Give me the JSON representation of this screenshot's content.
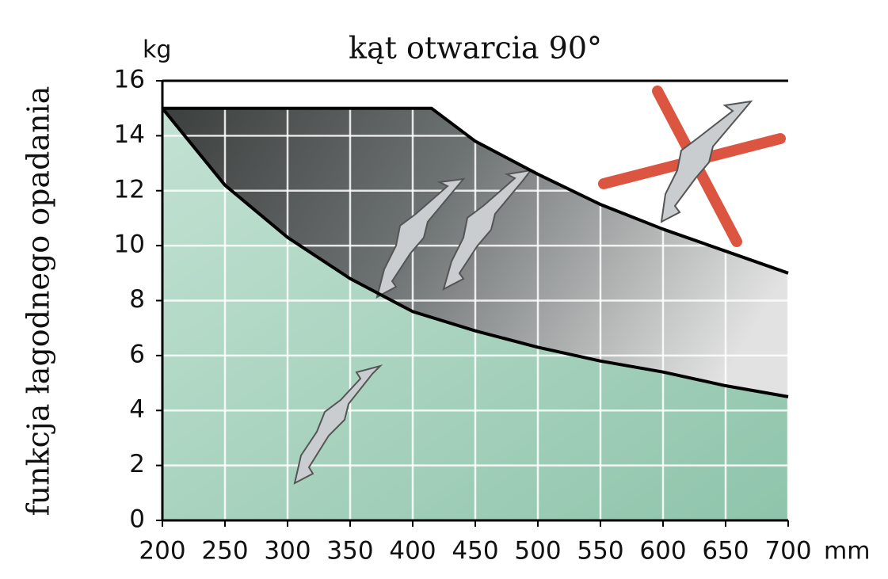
{
  "chart_data": {
    "type": "line",
    "title": "kąt otwarcia 90°",
    "ylabel": "funkcja łagodnego opadania",
    "yunit": "kg",
    "xunit": "mm",
    "series": [
      {
        "color": "#000000",
        "x": [
          200,
          415,
          450,
          500,
          550,
          600,
          650,
          700
        ],
        "values": [
          15,
          15,
          13.8,
          12.6,
          11.5,
          10.6,
          9.8,
          9.0
        ]
      },
      {
        "color": "#000000",
        "x": [
          200,
          250,
          300,
          350,
          400,
          450,
          500,
          550,
          600,
          650,
          700
        ],
        "values": [
          15,
          12.2,
          10.3,
          8.8,
          7.6,
          6.9,
          6.3,
          5.8,
          5.4,
          4.9,
          4.5
        ]
      }
    ],
    "xlim": [
      200,
      700
    ],
    "xticks": [
      200,
      250,
      300,
      350,
      400,
      450,
      500,
      550,
      600,
      650,
      700
    ],
    "ylim": [
      0,
      16
    ],
    "yticks": [
      0,
      2,
      4,
      6,
      8,
      10,
      12,
      14,
      16
    ],
    "grid": true
  }
}
